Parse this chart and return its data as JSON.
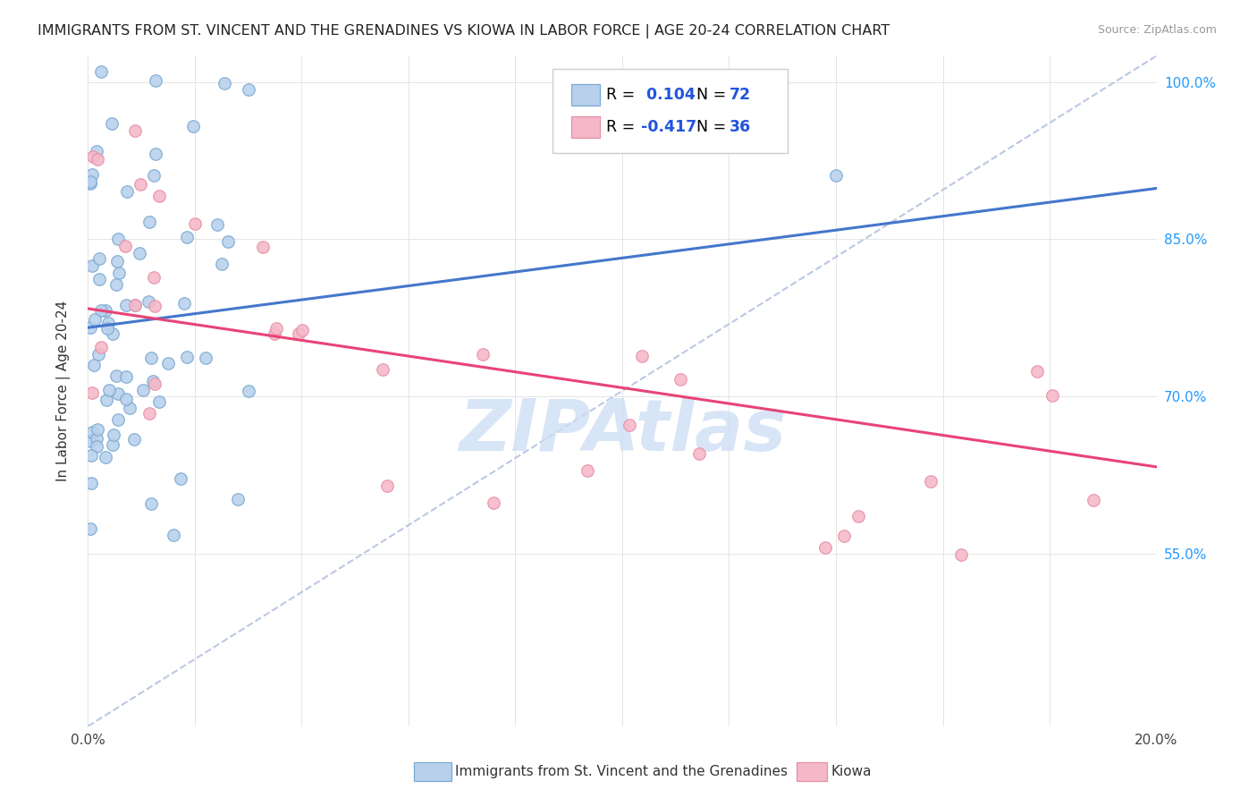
{
  "title": "IMMIGRANTS FROM ST. VINCENT AND THE GRENADINES VS KIOWA IN LABOR FORCE | AGE 20-24 CORRELATION CHART",
  "source": "Source: ZipAtlas.com",
  "ylabel": "In Labor Force | Age 20-24",
  "xlim": [
    0.0,
    0.2
  ],
  "ylim": [
    0.385,
    1.025
  ],
  "ytick_positions": [
    0.55,
    0.7,
    0.85,
    1.0
  ],
  "ytick_labels": [
    "55.0%",
    "70.0%",
    "85.0%",
    "100.0%"
  ],
  "r_blue": 0.104,
  "n_blue": 72,
  "r_pink": -0.417,
  "n_pink": 36,
  "blue_fill": "#b8d0ec",
  "blue_edge": "#7aaad0",
  "pink_fill": "#f5b8c8",
  "pink_edge": "#e890a8",
  "trendline_blue": "#4477cc",
  "trendline_pink": "#e84477",
  "diagonal_color": "#aabbdd",
  "legend_r_color": "#2255dd",
  "watermark_color": "#ccddf5",
  "grid_color": "#e0e0e0",
  "background": "#ffffff"
}
